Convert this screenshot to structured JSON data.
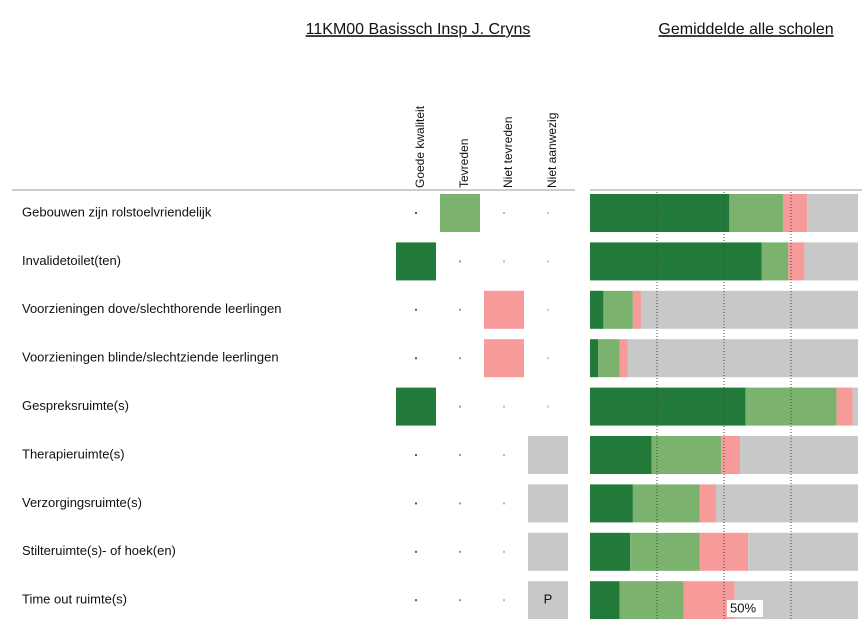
{
  "chart_data": [
    {
      "type": "matrix",
      "title": "11KM00 Basissch Insp J. Cryns",
      "columns": [
        "Goede kwaliteit",
        "Tevreden",
        "Niet tevreden",
        "Niet aanwezig"
      ],
      "colors": [
        "#217a3a",
        "#7bb36e",
        "#f79a9a",
        "#c8c8c8"
      ],
      "categories": [
        "Gebouwen zijn rolstoelvriendelijk",
        "Invalidetoilet(ten)",
        "Voorzieningen dove/slechthorende leerlingen",
        "Voorzieningen blinde/slechtziende leerlingen",
        "Gespreksruimte(s)",
        "Therapieruimte(s)",
        "Verzorgingsruimte(s)",
        "Stilteruimte(s)- of hoek(en)",
        "Time out ruimte(s)"
      ],
      "selected": [
        1,
        0,
        2,
        2,
        0,
        3,
        3,
        3,
        3
      ],
      "notes": [
        null,
        null,
        null,
        null,
        null,
        null,
        null,
        null,
        "P"
      ]
    },
    {
      "type": "stacked-bar",
      "title": "Gemiddelde alle scholen",
      "orientation": "horizontal",
      "xlim": [
        0,
        100
      ],
      "gridlines": [
        25,
        50,
        75
      ],
      "xticks": [
        {
          "value": 50,
          "label": "50%"
        }
      ],
      "series": [
        {
          "color": "#217a3a",
          "values": [
            52,
            64,
            5,
            3,
            58,
            23,
            16,
            15,
            11
          ]
        },
        {
          "color": "#7bb36e",
          "values": [
            20,
            10,
            11,
            8,
            34,
            26,
            25,
            26,
            24
          ]
        },
        {
          "color": "#f79a9a",
          "values": [
            9,
            6,
            3,
            3,
            6,
            7,
            6,
            18,
            19
          ]
        },
        {
          "color": "#c8c8c8",
          "values": [
            19,
            20,
            81,
            86,
            2,
            44,
            53,
            41,
            46
          ]
        }
      ]
    }
  ]
}
